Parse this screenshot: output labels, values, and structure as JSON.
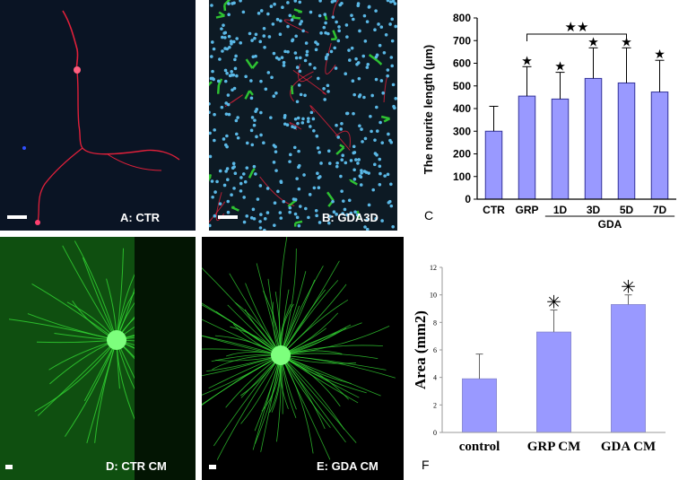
{
  "panels": {
    "a": {
      "label": "A: CTR"
    },
    "b": {
      "label": "B: GDA3D"
    },
    "c": {
      "letter": "C"
    },
    "d": {
      "label": "D: CTR CM"
    },
    "e": {
      "label": "E: GDA CM"
    },
    "f": {
      "letter": "F"
    }
  },
  "colors": {
    "bar_fill": "#9999ff",
    "bar_stroke": "#333399",
    "neurite_red": "#e0203a",
    "nucleus_blue": "#5ab8e6",
    "astro_green": "#35e035"
  },
  "chart_data": [
    {
      "type": "bar",
      "ylabel": "The neurite length (μm)",
      "categories": [
        "CTR",
        "GRP",
        "1D",
        "3D",
        "5D",
        "7D"
      ],
      "values": [
        300,
        455,
        442,
        533,
        513,
        473
      ],
      "error": [
        110,
        130,
        118,
        135,
        155,
        140
      ],
      "significance_marks": [
        "",
        "★",
        "★",
        "★",
        "★",
        "★"
      ],
      "group_label": "GDA",
      "group_categories": [
        "1D",
        "3D",
        "5D",
        "7D"
      ],
      "bracket": {
        "from": "GRP",
        "to": "5D",
        "mark": "★★"
      },
      "ylim": [
        0,
        800
      ],
      "yticks": [
        0,
        100,
        200,
        300,
        400,
        500,
        600,
        700,
        800
      ]
    },
    {
      "type": "bar",
      "ylabel": "Area (mm2)",
      "categories": [
        "control",
        "GRP CM",
        "GDA CM"
      ],
      "values": [
        3.9,
        7.3,
        9.3
      ],
      "error": [
        1.8,
        1.6,
        0.7
      ],
      "significance_marks": [
        "",
        "✳",
        "✳"
      ],
      "ylim": [
        0,
        12
      ],
      "yticks": [
        0,
        2,
        4,
        6,
        8,
        10,
        12
      ]
    }
  ]
}
